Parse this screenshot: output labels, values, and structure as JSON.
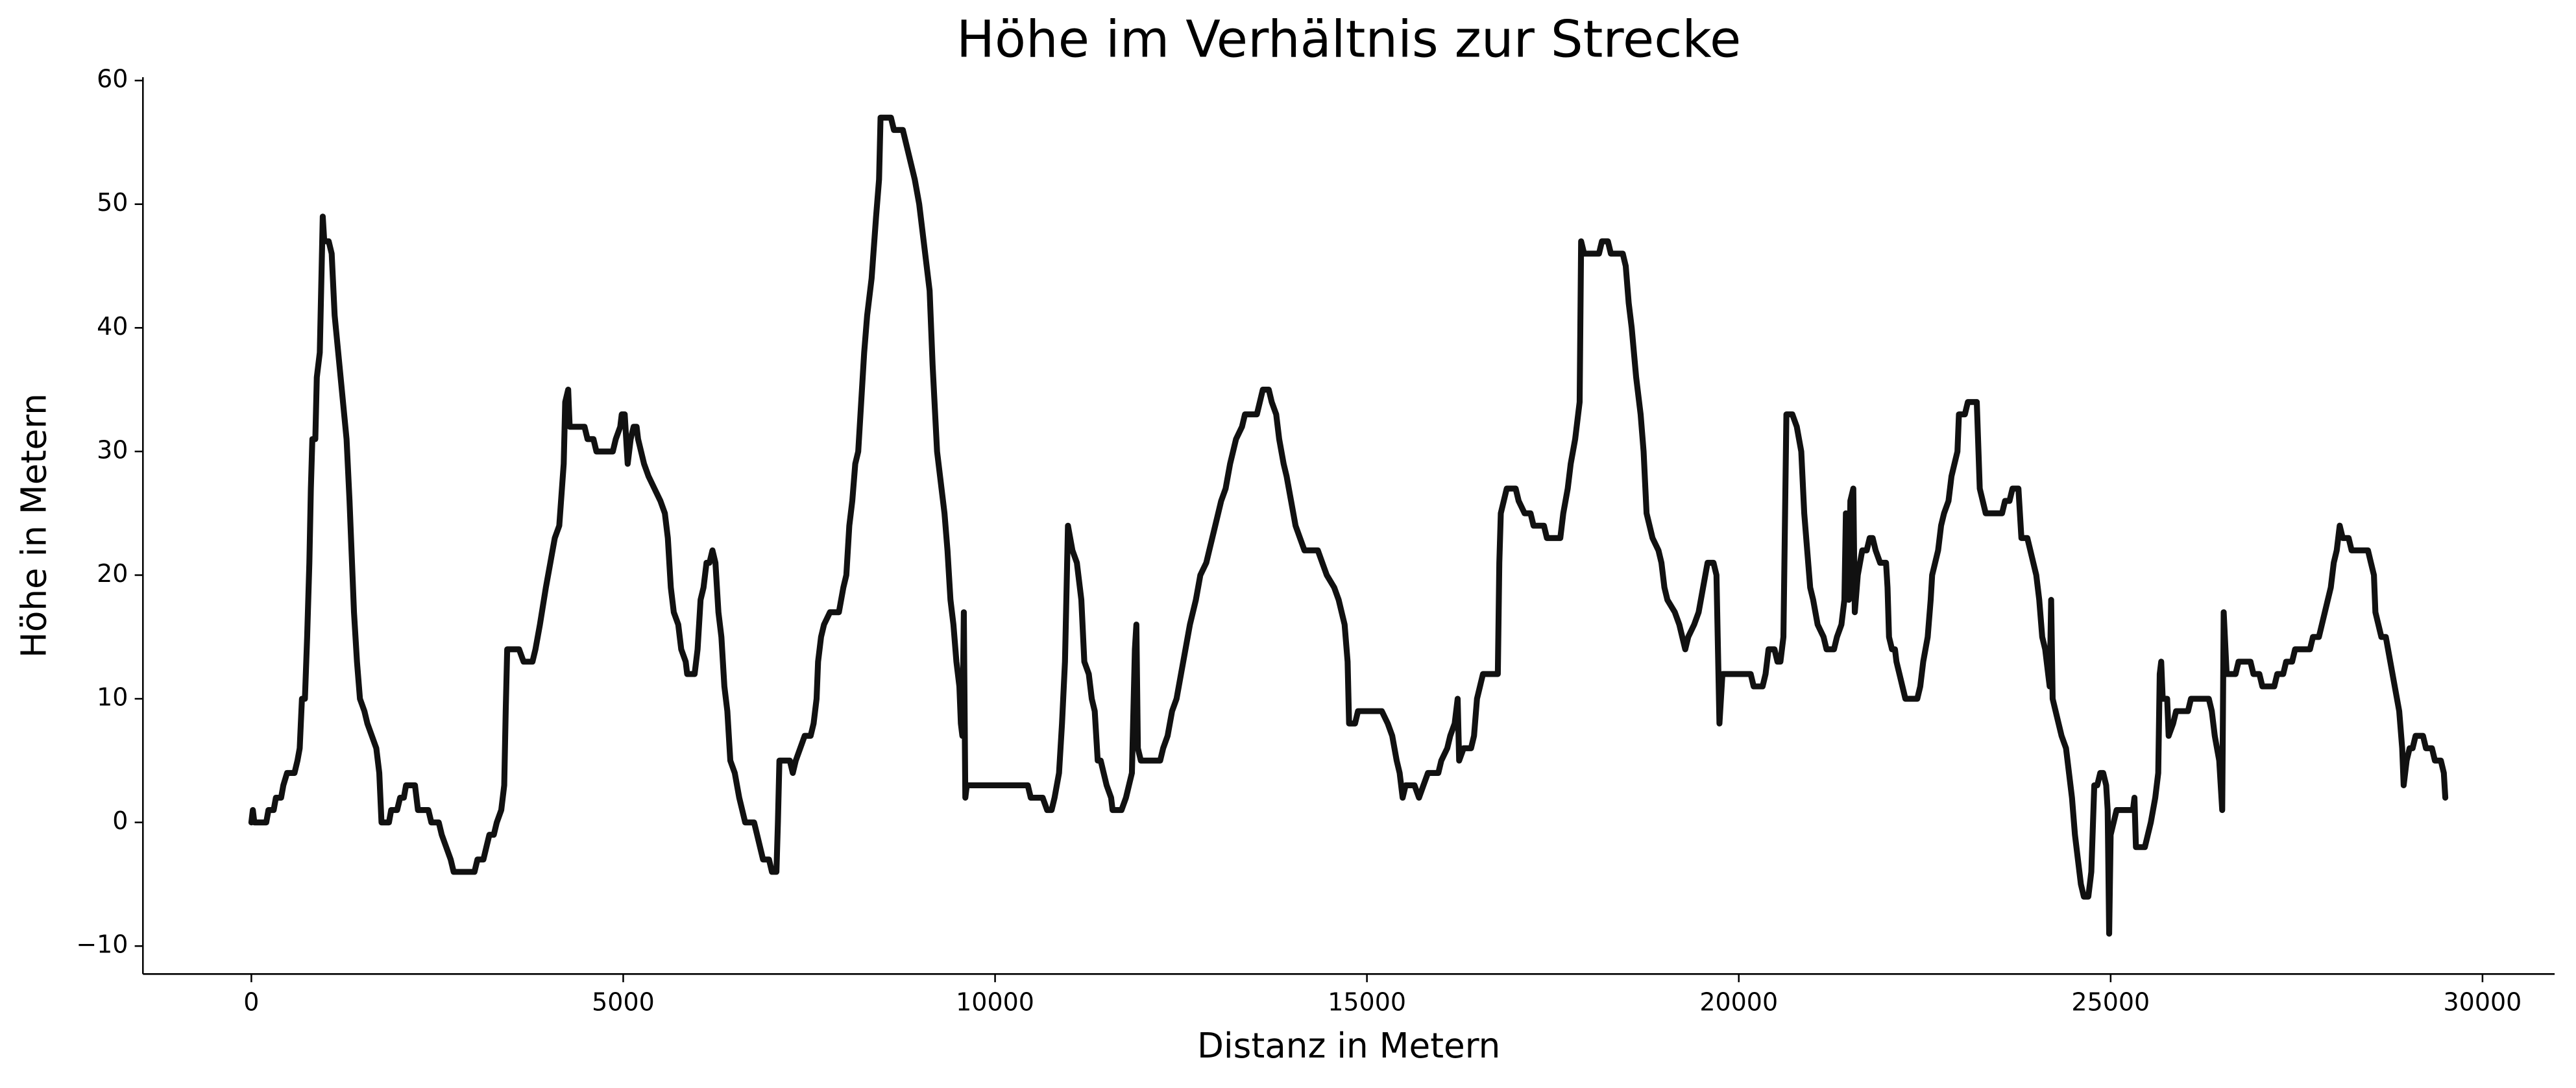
{
  "chart_data": {
    "type": "line",
    "title": "Höhe im Verhältnis zur Strecke",
    "x_label": "Distanz in Metern",
    "y_label": "Höhe in Metern",
    "color": "#111111",
    "xlim": [
      -1458,
      30970
    ],
    "ylim": [
      -12.26,
      60.27
    ],
    "xticks": [
      0,
      5000,
      10000,
      15000,
      20000,
      25000,
      30000
    ],
    "yticks": [
      {
        "value": -10,
        "label": "−10"
      },
      0,
      10,
      20,
      30,
      40,
      50,
      60
    ],
    "grid": false,
    "x": [
      0,
      20,
      40,
      200,
      230,
      300,
      330,
      400,
      430,
      480,
      580,
      620,
      650,
      680,
      720,
      750,
      780,
      800,
      820,
      860,
      880,
      920,
      960,
      980,
      1040,
      1080,
      1120,
      1200,
      1280,
      1320,
      1380,
      1420,
      1460,
      1520,
      1560,
      1620,
      1680,
      1720,
      1750,
      1850,
      1880,
      1960,
      2000,
      2050,
      2080,
      2200,
      2240,
      2380,
      2420,
      2520,
      2560,
      2620,
      2680,
      2720,
      3000,
      3040,
      3120,
      3160,
      3200,
      3260,
      3300,
      3360,
      3400,
      3420,
      3440,
      3600,
      3660,
      3780,
      3820,
      3880,
      3960,
      4020,
      4080,
      4140,
      4200,
      4220,
      4260,
      4280,
      4480,
      4520,
      4600,
      4640,
      4860,
      4900,
      4960,
      4980,
      5020,
      5060,
      5100,
      5140,
      5180,
      5200,
      5240,
      5280,
      5340,
      5420,
      5500,
      5560,
      5600,
      5640,
      5680,
      5740,
      5780,
      5840,
      5860,
      5960,
      6000,
      6040,
      6080,
      6120,
      6160,
      6200,
      6240,
      6280,
      6320,
      6360,
      6400,
      6440,
      6500,
      6560,
      6600,
      6640,
      6760,
      6800,
      6840,
      6880,
      6960,
      7000,
      7060,
      7080,
      7100,
      7240,
      7280,
      7320,
      7380,
      7440,
      7520,
      7560,
      7600,
      7620,
      7660,
      7700,
      7780,
      7900,
      7960,
      8000,
      8040,
      8080,
      8120,
      8160,
      8200,
      8240,
      8280,
      8340,
      8400,
      8440,
      8460,
      8600,
      8640,
      8760,
      8800,
      8880,
      8920,
      8980,
      9040,
      9120,
      9160,
      9220,
      9280,
      9320,
      9360,
      9400,
      9440,
      9480,
      9520,
      9540,
      9560,
      9580,
      9600,
      9620,
      10440,
      10480,
      10640,
      10700,
      10760,
      10800,
      10860,
      10900,
      10940,
      10980,
      11040,
      11100,
      11160,
      11200,
      11260,
      11300,
      11340,
      11380,
      11420,
      11460,
      11500,
      11560,
      11580,
      11700,
      11760,
      11800,
      11840,
      11880,
      11900,
      11920,
      11960,
      12220,
      12260,
      12320,
      12380,
      12440,
      12500,
      12560,
      12620,
      12700,
      12760,
      12840,
      12880,
      12960,
      13000,
      13040,
      13100,
      13160,
      13200,
      13240,
      13320,
      13360,
      13520,
      13560,
      13600,
      13680,
      13720,
      13780,
      13820,
      13880,
      13920,
      13980,
      14040,
      14100,
      14160,
      14340,
      14400,
      14460,
      14560,
      14620,
      14660,
      14700,
      14740,
      14760,
      14840,
      14880,
      15200,
      15280,
      15340,
      15400,
      15440,
      15480,
      15520,
      15640,
      15700,
      15760,
      15820,
      15960,
      16000,
      16080,
      16120,
      16180,
      16220,
      16240,
      16300,
      16400,
      16440,
      16480,
      16520,
      16560,
      16760,
      16780,
      16800,
      16840,
      16880,
      17000,
      17040,
      17120,
      17200,
      17240,
      17380,
      17420,
      17600,
      17640,
      17700,
      17740,
      17800,
      17840,
      17860,
      17880,
      17920,
      18120,
      18160,
      18240,
      18280,
      18440,
      18480,
      18520,
      18560,
      18620,
      18680,
      18720,
      18760,
      18800,
      18840,
      18920,
      18960,
      19000,
      19040,
      19140,
      19200,
      19240,
      19280,
      19320,
      19400,
      19460,
      19520,
      19580,
      19660,
      19700,
      19740,
      19780,
      20160,
      20200,
      20320,
      20360,
      20400,
      20480,
      20520,
      20560,
      20600,
      20640,
      20720,
      20780,
      20840,
      20880,
      20920,
      20960,
      21000,
      21060,
      21140,
      21180,
      21280,
      21320,
      21380,
      21420,
      21440,
      21480,
      21500,
      21540,
      21560,
      21600,
      21660,
      21720,
      21760,
      21800,
      21840,
      21900,
      21980,
      22000,
      22020,
      22060,
      22100,
      22120,
      22160,
      22200,
      22240,
      22400,
      22440,
      22480,
      22540,
      22580,
      22600,
      22640,
      22680,
      22720,
      22760,
      22820,
      22860,
      22900,
      22940,
      22960,
      23040,
      23080,
      23200,
      23240,
      23280,
      23320,
      23540,
      23580,
      23640,
      23680,
      23760,
      23800,
      23880,
      23920,
      23960,
      24000,
      24040,
      24080,
      24120,
      24160,
      24180,
      24200,
      24220,
      24260,
      24300,
      24340,
      24400,
      24440,
      24480,
      24520,
      24560,
      24600,
      24640,
      24700,
      24740,
      24780,
      24820,
      24860,
      24900,
      24940,
      24960,
      24980,
      25000,
      25040,
      25080,
      25300,
      25320,
      25340,
      25460,
      25500,
      25540,
      25600,
      25640,
      25660,
      25680,
      25700,
      25760,
      25780,
      25840,
      25880,
      26040,
      26080,
      26320,
      26360,
      26400,
      26460,
      26500,
      26520,
      26560,
      26680,
      26720,
      26880,
      26920,
      27000,
      27040,
      27200,
      27240,
      27320,
      27360,
      27440,
      27480,
      27680,
      27720,
      27800,
      27840,
      27920,
      27960,
      28000,
      28040,
      28080,
      28120,
      28200,
      28240,
      28460,
      28500,
      28540,
      28560,
      28600,
      28640,
      28700,
      28760,
      28820,
      28880,
      28920,
      28940,
      28980,
      29020,
      29060,
      29100,
      29200,
      29240,
      29320,
      29360,
      29440,
      29480,
      29500
    ],
    "values": [
      0,
      1,
      0,
      0,
      1,
      1,
      2,
      2,
      3,
      4,
      4,
      5,
      6,
      10,
      10,
      15,
      21,
      27,
      31,
      31,
      36,
      38,
      49,
      47,
      47,
      46,
      41,
      36,
      31,
      26,
      17,
      13,
      10,
      9,
      8,
      7,
      6,
      4,
      0,
      0,
      1,
      1,
      2,
      2,
      3,
      3,
      1,
      1,
      0,
      0,
      -1,
      -2,
      -3,
      -4,
      -4,
      -3,
      -3,
      -2,
      -1,
      -1,
      0,
      1,
      3,
      9,
      14,
      14,
      13,
      13,
      14,
      16,
      19,
      21,
      23,
      24,
      29,
      34,
      35,
      32,
      32,
      31,
      31,
      30,
      30,
      31,
      32,
      33,
      33,
      29,
      31,
      32,
      32,
      31,
      30,
      29,
      28,
      27,
      26,
      25,
      23,
      19,
      17,
      16,
      14,
      13,
      12,
      12,
      14,
      18,
      19,
      21,
      21,
      22,
      21,
      17,
      15,
      11,
      9,
      5,
      4,
      2,
      1,
      0,
      0,
      -1,
      -2,
      -3,
      -3,
      -4,
      -4,
      0,
      5,
      5,
      4,
      5,
      6,
      7,
      7,
      8,
      10,
      13,
      15,
      16,
      17,
      17,
      19,
      20,
      24,
      26,
      29,
      30,
      34,
      38,
      41,
      44,
      49,
      52,
      57,
      57,
      56,
      56,
      55,
      53,
      52,
      50,
      47,
      43,
      37,
      30,
      27,
      25,
      22,
      18,
      16,
      13,
      11,
      8,
      7,
      17,
      2,
      3,
      3,
      2,
      2,
      1,
      1,
      2,
      4,
      8,
      13,
      24,
      22,
      21,
      18,
      13,
      12,
      10,
      9,
      5,
      5,
      4,
      3,
      2,
      1,
      1,
      2,
      3,
      4,
      14,
      16,
      6,
      5,
      5,
      6,
      7,
      9,
      10,
      12,
      14,
      16,
      18,
      20,
      21,
      22,
      24,
      25,
      26,
      27,
      29,
      30,
      31,
      32,
      33,
      33,
      34,
      35,
      35,
      34,
      33,
      31,
      29,
      28,
      26,
      24,
      23,
      22,
      22,
      21,
      20,
      19,
      18,
      17,
      16,
      13,
      8,
      8,
      9,
      9,
      8,
      7,
      5,
      4,
      2,
      3,
      3,
      2,
      3,
      4,
      4,
      5,
      6,
      7,
      8,
      10,
      5,
      6,
      6,
      7,
      10,
      11,
      12,
      12,
      21,
      25,
      26,
      27,
      27,
      26,
      25,
      25,
      24,
      24,
      23,
      23,
      25,
      27,
      29,
      31,
      33,
      34,
      47,
      46,
      46,
      47,
      47,
      46,
      46,
      45,
      42,
      40,
      36,
      33,
      30,
      25,
      24,
      23,
      22,
      21,
      19,
      18,
      17,
      16,
      15,
      14,
      15,
      16,
      17,
      19,
      21,
      21,
      20,
      8,
      12,
      12,
      11,
      11,
      12,
      14,
      14,
      13,
      13,
      15,
      33,
      33,
      32,
      30,
      25,
      22,
      19,
      18,
      16,
      15,
      14,
      14,
      15,
      16,
      18,
      25,
      18,
      26,
      27,
      17,
      20,
      22,
      22,
      23,
      23,
      22,
      21,
      21,
      19,
      15,
      14,
      14,
      13,
      12,
      11,
      10,
      10,
      11,
      13,
      15,
      18,
      20,
      21,
      22,
      24,
      25,
      26,
      28,
      29,
      30,
      33,
      33,
      34,
      34,
      27,
      26,
      25,
      25,
      26,
      26,
      27,
      27,
      23,
      23,
      22,
      21,
      20,
      18,
      15,
      14,
      12,
      11,
      18,
      10,
      9,
      8,
      7,
      6,
      4,
      2,
      -1,
      -3,
      -5,
      -6,
      -6,
      -4,
      3,
      3,
      4,
      4,
      3,
      1,
      -9,
      -1,
      0,
      1,
      1,
      2,
      -2,
      -2,
      -1,
      0,
      2,
      4,
      12,
      13,
      10,
      10,
      7,
      8,
      9,
      9,
      10,
      10,
      9,
      7,
      5,
      1,
      17,
      12,
      12,
      13,
      13,
      12,
      12,
      11,
      11,
      12,
      12,
      13,
      13,
      14,
      14,
      15,
      15,
      16,
      18,
      19,
      21,
      22,
      24,
      23,
      23,
      22,
      22,
      21,
      20,
      17,
      16,
      15,
      15,
      13,
      11,
      9,
      6,
      3,
      5,
      6,
      6,
      7,
      7,
      6,
      6,
      5,
      5,
      4,
      2
    ]
  }
}
